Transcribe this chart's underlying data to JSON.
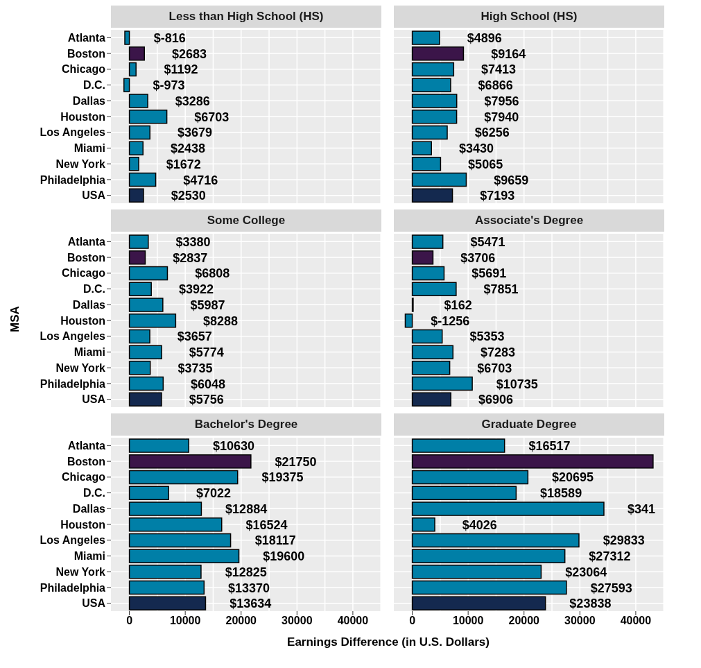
{
  "chart_data": [
    {
      "type": "bar",
      "orientation": "horizontal",
      "title": "Less than High School (HS)",
      "categories": [
        "Atlanta",
        "Boston",
        "Chicago",
        "D.C.",
        "Dallas",
        "Houston",
        "Los Angeles",
        "Miami",
        "New York",
        "Philadelphia",
        "USA"
      ],
      "values": [
        -816,
        2683,
        1192,
        -973,
        3286,
        6703,
        3679,
        2438,
        1672,
        4716,
        2530
      ],
      "value_labels": [
        "$-816",
        "$2683",
        "$1192",
        "$-973",
        "$3286",
        "$6703",
        "$3679",
        "$2438",
        "$1672",
        "$4716",
        "$2530"
      ],
      "colors": [
        "#007fa7",
        "#3b1549",
        "#007fa7",
        "#007fa7",
        "#007fa7",
        "#007fa7",
        "#007fa7",
        "#007fa7",
        "#007fa7",
        "#007fa7",
        "#14294f"
      ],
      "xlim": [
        -3300,
        45100
      ],
      "xticks": [
        0,
        10000,
        20000,
        30000,
        40000
      ],
      "grid": true,
      "tick_labels": "y"
    },
    {
      "type": "bar",
      "orientation": "horizontal",
      "title": "High School (HS)",
      "categories": [
        "Atlanta",
        "Boston",
        "Chicago",
        "D.C.",
        "Dallas",
        "Houston",
        "Los Angeles",
        "Miami",
        "New York",
        "Philadelphia",
        "USA"
      ],
      "values": [
        4896,
        9164,
        7413,
        6866,
        7956,
        7940,
        6256,
        3430,
        5065,
        9659,
        7193
      ],
      "value_labels": [
        "$4896",
        "$9164",
        "$7413",
        "$6866",
        "$7956",
        "$7940",
        "$6256",
        "$3430",
        "$5065",
        "$9659",
        "$7193"
      ],
      "colors": [
        "#007fa7",
        "#3b1549",
        "#007fa7",
        "#007fa7",
        "#007fa7",
        "#007fa7",
        "#007fa7",
        "#007fa7",
        "#007fa7",
        "#007fa7",
        "#14294f"
      ],
      "xlim": [
        -3300,
        45100
      ],
      "xticks": [
        0,
        10000,
        20000,
        30000,
        40000
      ],
      "grid": true,
      "tick_labels": false
    },
    {
      "type": "bar",
      "orientation": "horizontal",
      "title": "Some College",
      "ylabel": "MSA",
      "categories": [
        "Atlanta",
        "Boston",
        "Chicago",
        "D.C.",
        "Dallas",
        "Houston",
        "Los Angeles",
        "Miami",
        "New York",
        "Philadelphia",
        "USA"
      ],
      "values": [
        3380,
        2837,
        6808,
        3922,
        5987,
        8288,
        3657,
        5774,
        3735,
        6048,
        5756
      ],
      "value_labels": [
        "$3380",
        "$2837",
        "$6808",
        "$3922",
        "$5987",
        "$8288",
        "$3657",
        "$5774",
        "$3735",
        "$6048",
        "$5756"
      ],
      "colors": [
        "#007fa7",
        "#3b1549",
        "#007fa7",
        "#007fa7",
        "#007fa7",
        "#007fa7",
        "#007fa7",
        "#007fa7",
        "#007fa7",
        "#007fa7",
        "#14294f"
      ],
      "xlim": [
        -3300,
        45100
      ],
      "xticks": [
        0,
        10000,
        20000,
        30000,
        40000
      ],
      "grid": true,
      "tick_labels": "y"
    },
    {
      "type": "bar",
      "orientation": "horizontal",
      "title": "Associate's Degree",
      "categories": [
        "Atlanta",
        "Boston",
        "Chicago",
        "D.C.",
        "Dallas",
        "Houston",
        "Los Angeles",
        "Miami",
        "New York",
        "Philadelphia",
        "USA"
      ],
      "values": [
        5471,
        3706,
        5691,
        7851,
        162,
        -1256,
        5353,
        7283,
        6703,
        10735,
        6906
      ],
      "value_labels": [
        "$5471",
        "$3706",
        "$5691",
        "$7851",
        "$162",
        "$-1256",
        "$5353",
        "$7283",
        "$6703",
        "$10735",
        "$6906"
      ],
      "colors": [
        "#007fa7",
        "#3b1549",
        "#007fa7",
        "#007fa7",
        "#007fa7",
        "#007fa7",
        "#007fa7",
        "#007fa7",
        "#007fa7",
        "#007fa7",
        "#14294f"
      ],
      "xlim": [
        -3300,
        45100
      ],
      "xticks": [
        0,
        10000,
        20000,
        30000,
        40000
      ],
      "grid": true,
      "tick_labels": false
    },
    {
      "type": "bar",
      "orientation": "horizontal",
      "title": "Bachelor's Degree",
      "xlabel": "Earnings Difference (in U.S. Dollars)",
      "categories": [
        "Atlanta",
        "Boston",
        "Chicago",
        "D.C.",
        "Dallas",
        "Houston",
        "Los Angeles",
        "Miami",
        "New York",
        "Philadelphia",
        "USA"
      ],
      "values": [
        10630,
        21750,
        19375,
        7022,
        12884,
        16524,
        18117,
        19600,
        12825,
        13370,
        13634
      ],
      "value_labels": [
        "$10630",
        "$21750",
        "$19375",
        "$7022",
        "$12884",
        "$16524",
        "$18117",
        "$19600",
        "$12825",
        "$13370",
        "$13634"
      ],
      "colors": [
        "#007fa7",
        "#3b1549",
        "#007fa7",
        "#007fa7",
        "#007fa7",
        "#007fa7",
        "#007fa7",
        "#007fa7",
        "#007fa7",
        "#007fa7",
        "#14294f"
      ],
      "xlim": [
        -3300,
        45100
      ],
      "xticks": [
        0,
        10000,
        20000,
        30000,
        40000
      ],
      "grid": true
    },
    {
      "type": "bar",
      "orientation": "horizontal",
      "title": "Graduate Degree",
      "categories": [
        "Atlanta",
        "Boston",
        "Chicago",
        "D.C.",
        "Dallas",
        "Houston",
        "Los Angeles",
        "Miami",
        "New York",
        "Philadelphia",
        "USA"
      ],
      "values": [
        16517,
        43100,
        20695,
        18589,
        34300,
        4026,
        29833,
        27312,
        23064,
        27593,
        23838
      ],
      "annotations": [
        {
          "text": "$341",
          "x": 34300,
          "y": "Dallas"
        }
      ],
      "value_labels": [
        "$16517",
        null,
        "$20695",
        "$18589",
        null,
        "$4026",
        "$29833",
        "$27312",
        "$23064",
        "$27593",
        "$23838"
      ],
      "colors": [
        "#007fa7",
        "#3b1549",
        "#007fa7",
        "#007fa7",
        "#007fa7",
        "#007fa7",
        "#007fa7",
        "#007fa7",
        "#007fa7",
        "#007fa7",
        "#14294f"
      ],
      "xlim": [
        -3300,
        45100
      ],
      "xticks": [
        0,
        10000,
        20000,
        30000,
        40000
      ],
      "grid": true,
      "tick_labels": "x"
    }
  ]
}
